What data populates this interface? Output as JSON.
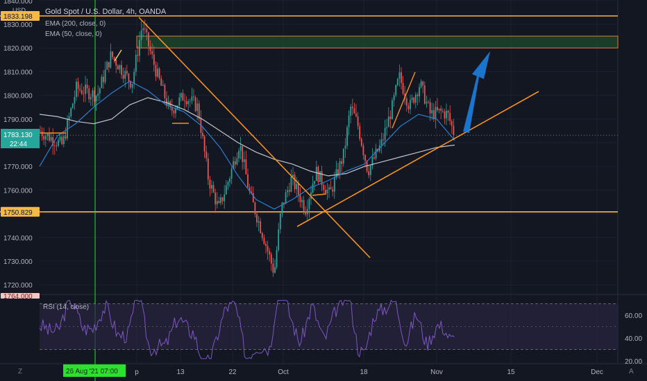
{
  "header": {
    "title": "Gold Spot / U.S. Dollar, 4h, OANDA",
    "legend": [
      "EMA (200, close, 0)",
      "EMA (50, close, 0)"
    ],
    "currency": "USD"
  },
  "axis": {
    "price_ticks": [
      "1840.000",
      "1830.000",
      "1820.000",
      "1810.000",
      "1800.000",
      "1790.000",
      "1780.000",
      "1770.000",
      "1760.000",
      "1750.000",
      "1740.000",
      "1730.000",
      "1720.000"
    ],
    "price_values": [
      1840,
      1830,
      1820,
      1810,
      1800,
      1790,
      1780,
      1770,
      1760,
      1750,
      1740,
      1730,
      1720
    ],
    "rsi_ticks": [
      "60.00",
      "40.00",
      "20.00"
    ],
    "rsi_values": [
      60,
      40,
      20
    ],
    "time_ticks": [
      "p",
      "13",
      "22",
      "Oct",
      "18",
      "Nov",
      "15",
      "Dec"
    ]
  },
  "badges": {
    "top_level": "1833.198",
    "current_price": "1783.130",
    "countdown": "22:44",
    "support_level": "1750.829",
    "rsi_price_tag": "1764.000",
    "crosshair_date": "26 Aug '21   07:00"
  },
  "rsi": {
    "title": "RSI (14, close)"
  },
  "bottom_left_label": "Z",
  "bottom_right_label": "A",
  "colors": {
    "background": "#131722",
    "candle_up": "#26a69a",
    "candle_down": "#ef5350",
    "ema50": "#2a7fd4",
    "ema200": "#d6d9de",
    "trendline": "#f7931e",
    "level": "#f5b945",
    "zone": "#1e4a2c",
    "arrow": "#1e7fe0",
    "crosshair": "#2ee02e",
    "rsi_line": "#7e57c2",
    "rsi_band": "#2a2540"
  },
  "chart_data": {
    "type": "candlestick",
    "title": "Gold Spot / U.S. Dollar, 4h, OANDA",
    "ylim": [
      1718,
      1842
    ],
    "levels": [
      1833.2,
      1750.829
    ],
    "resistance_zone": [
      1820,
      1825
    ],
    "current_price": 1783.13,
    "ema200_path": [
      1792,
      1791,
      1789,
      1788,
      1790,
      1796,
      1799,
      1797,
      1794,
      1790,
      1785,
      1780,
      1776,
      1773,
      1771,
      1768,
      1766,
      1767,
      1770,
      1772,
      1774,
      1776,
      1778,
      1779
    ],
    "ema50_path": [
      1770,
      1783,
      1788,
      1795,
      1801,
      1806,
      1802,
      1796,
      1793,
      1787,
      1778,
      1766,
      1756,
      1752,
      1756,
      1761,
      1764,
      1768,
      1771,
      1779,
      1787,
      1792,
      1790,
      1781
    ],
    "rsi": {
      "upper": 70,
      "middle": 50,
      "lower": 30,
      "ylim": [
        10,
        75
      ]
    }
  }
}
